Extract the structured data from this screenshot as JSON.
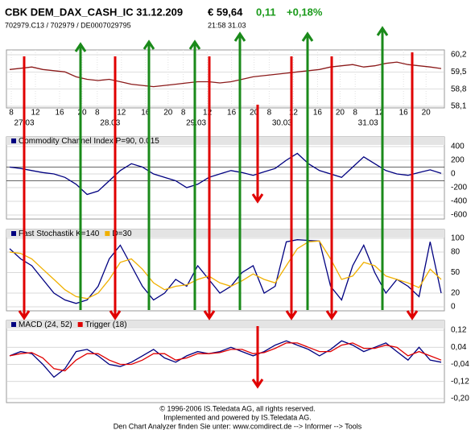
{
  "header": {
    "title": "CBK DEM_DAX_CASH_IC 31.12.209",
    "price": "€ 59,64",
    "change": "0,11",
    "change_pct": "+0,18%",
    "ids": "702979.C13  /  702979  /  DE0007029795",
    "time": "21:58   31.03"
  },
  "chart_data": [
    {
      "type": "line",
      "ylim": [
        58.1,
        60.2
      ],
      "yticks": [
        {
          "value": 60.2,
          "label": "60,2"
        },
        {
          "value": 59.5,
          "label": "59,5"
        },
        {
          "value": 58.8,
          "label": "58,8"
        },
        {
          "value": 58.1,
          "label": "58,1"
        }
      ],
      "hour_labels": [
        "8",
        "12",
        "16",
        "20",
        "8",
        "12",
        "16",
        "20",
        "8",
        "12",
        "16",
        "20",
        "8",
        "12",
        "16",
        "20",
        "8",
        "12",
        "16",
        "20"
      ],
      "date_labels": [
        "27.03",
        "28.03",
        "29.03",
        "30.03",
        "31.03"
      ],
      "series": [
        {
          "color": "#8b1a1a",
          "values": [
            59.6,
            59.65,
            59.7,
            59.6,
            59.55,
            59.5,
            59.3,
            59.2,
            59.15,
            59.2,
            59.1,
            59.0,
            58.95,
            58.9,
            58.95,
            59.0,
            59.05,
            59.1,
            59.1,
            59.05,
            59.1,
            59.2,
            59.3,
            59.35,
            59.4,
            59.45,
            59.5,
            59.55,
            59.6,
            59.7,
            59.75,
            59.8,
            59.7,
            59.75,
            59.85,
            59.9,
            59.8,
            59.75,
            59.7,
            59.64
          ]
        }
      ]
    },
    {
      "type": "line",
      "ylim": [
        -600,
        400
      ],
      "yticks": [
        400,
        200,
        0,
        -200,
        -400,
        -600
      ],
      "hlines": [
        100,
        -100
      ],
      "series": [
        {
          "name": "Commodity Channel Index P=90, 0.015",
          "color": "#000080",
          "values": [
            100,
            80,
            50,
            20,
            0,
            -50,
            -150,
            -300,
            -250,
            -100,
            50,
            150,
            100,
            0,
            -50,
            -100,
            -200,
            -150,
            -50,
            0,
            50,
            20,
            -20,
            30,
            80,
            200,
            300,
            150,
            50,
            0,
            -50,
            100,
            250,
            150,
            50,
            0,
            -20,
            20,
            60,
            10
          ]
        }
      ]
    },
    {
      "type": "line",
      "ylim": [
        0,
        100
      ],
      "yticks": [
        100,
        80,
        50,
        20,
        0
      ],
      "series": [
        {
          "name": "Fast Stochastik K=140",
          "color": "#000080",
          "values": [
            85,
            70,
            60,
            40,
            20,
            10,
            5,
            10,
            30,
            70,
            90,
            60,
            30,
            10,
            20,
            40,
            30,
            60,
            40,
            20,
            30,
            50,
            60,
            20,
            30,
            95,
            98,
            97,
            96,
            30,
            10,
            60,
            90,
            50,
            20,
            40,
            30,
            15,
            95,
            20
          ]
        },
        {
          "name": "D=30",
          "color": "#f0b000",
          "values": [
            80,
            78,
            70,
            55,
            40,
            25,
            15,
            12,
            20,
            40,
            65,
            70,
            55,
            35,
            25,
            30,
            32,
            40,
            45,
            35,
            30,
            38,
            48,
            40,
            35,
            60,
            85,
            95,
            96,
            70,
            40,
            45,
            65,
            60,
            45,
            40,
            35,
            28,
            55,
            40
          ]
        }
      ]
    },
    {
      "type": "line",
      "ylim": [
        -0.2,
        0.12
      ],
      "yticks": [
        {
          "value": 0.12,
          "label": "0,12"
        },
        {
          "value": 0.04,
          "label": "0,04"
        },
        {
          "value": -0.04,
          "label": "-0,04"
        },
        {
          "value": -0.12,
          "label": "-0,12"
        },
        {
          "value": -0.2,
          "label": "-0,20"
        }
      ],
      "series": [
        {
          "name": "MACD (24, 52)",
          "color": "#000080",
          "values": [
            0.0,
            0.02,
            0.01,
            -0.04,
            -0.1,
            -0.06,
            0.02,
            0.03,
            0.0,
            -0.04,
            -0.05,
            -0.03,
            0.0,
            0.03,
            -0.01,
            -0.03,
            0.0,
            0.02,
            0.01,
            0.02,
            0.04,
            0.02,
            0.0,
            0.02,
            0.05,
            0.07,
            0.05,
            0.03,
            0.0,
            0.03,
            0.07,
            0.05,
            0.02,
            0.04,
            0.06,
            0.02,
            -0.02,
            0.04,
            -0.02,
            -0.03
          ]
        },
        {
          "name": "Trigger (18)",
          "color": "#e00000",
          "values": [
            0.0,
            0.01,
            0.015,
            -0.01,
            -0.06,
            -0.07,
            -0.02,
            0.01,
            0.01,
            -0.02,
            -0.04,
            -0.04,
            -0.02,
            0.01,
            0.01,
            -0.02,
            -0.01,
            0.01,
            0.01,
            0.015,
            0.03,
            0.03,
            0.01,
            0.015,
            0.035,
            0.06,
            0.06,
            0.04,
            0.02,
            0.02,
            0.05,
            0.06,
            0.035,
            0.035,
            0.05,
            0.04,
            0.0,
            0.02,
            0.0,
            -0.02
          ]
        }
      ]
    }
  ],
  "footer": [
    "© 1996-2006 IS.Teledata AG, all rights reserved.",
    "Implemented and powered by IS.Teledata AG.",
    "Den Chart Analyzer finden Sie unter: www.comdirect.de --> Informer --> Tools"
  ]
}
